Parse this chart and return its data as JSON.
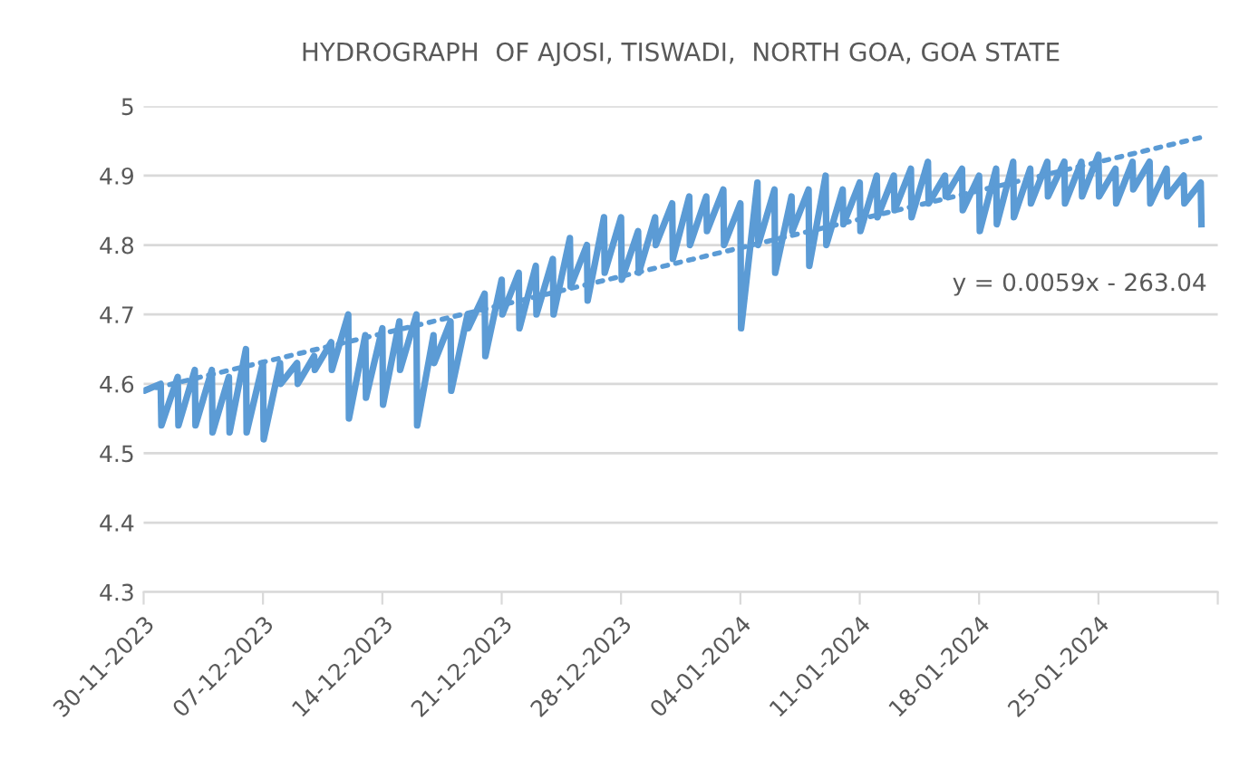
{
  "chart_data": {
    "type": "line",
    "title": "HYDROGRAPH  OF AJOSI, TISWADI,  NORTH GOA, GOA STATE",
    "xlim": [
      "2023-11-30",
      "2024-02-01"
    ],
    "xticks": [
      {
        "value": "2023-11-30",
        "label": "30-11-2023"
      },
      {
        "value": "2023-12-07",
        "label": "07-12-2023"
      },
      {
        "value": "2023-12-14",
        "label": "14-12-2023"
      },
      {
        "value": "2023-12-21",
        "label": "21-12-2023"
      },
      {
        "value": "2023-12-28",
        "label": "28-12-2023"
      },
      {
        "value": "2024-01-04",
        "label": "04-01-2024"
      },
      {
        "value": "2024-01-11",
        "label": "11-01-2024"
      },
      {
        "value": "2024-01-18",
        "label": "18-01-2024"
      },
      {
        "value": "2024-01-25",
        "label": "25-01-2024"
      },
      {
        "value": "2024-02-01",
        "label": null
      }
    ],
    "ylim": [
      4.3,
      5
    ],
    "yticks": [
      4.3,
      4.4,
      4.5,
      4.6,
      4.7,
      4.8,
      4.9,
      5
    ],
    "grid": "y",
    "legend": false,
    "annotations": [
      "y = 0.0059x - 263.04"
    ],
    "series": [
      {
        "color": "#5b9bd5",
        "line_style": "solid",
        "x": [
          "2023-11-30T00:00",
          "2023-11-30T01:00",
          "2023-12-01T00:00",
          "2023-12-01T01:00",
          "2023-12-02T00:00",
          "2023-12-02T01:00",
          "2023-12-03T00:00",
          "2023-12-03T01:00",
          "2023-12-04T00:00",
          "2023-12-04T01:00",
          "2023-12-05T00:00",
          "2023-12-05T01:00",
          "2023-12-06T00:00",
          "2023-12-06T01:00",
          "2023-12-07T00:00",
          "2023-12-07T01:00",
          "2023-12-08T00:00",
          "2023-12-08T01:00",
          "2023-12-09T00:00",
          "2023-12-09T01:00",
          "2023-12-10T00:00",
          "2023-12-10T01:00",
          "2023-12-11T00:00",
          "2023-12-11T01:00",
          "2023-12-12T00:00",
          "2023-12-12T01:00",
          "2023-12-13T00:00",
          "2023-12-13T01:00",
          "2023-12-14T00:00",
          "2023-12-14T01:00",
          "2023-12-15T00:00",
          "2023-12-15T01:00",
          "2023-12-16T00:00",
          "2023-12-16T01:00",
          "2023-12-17T00:00",
          "2023-12-17T01:00",
          "2023-12-18T00:00",
          "2023-12-18T01:00",
          "2023-12-19T00:00",
          "2023-12-19T01:00",
          "2023-12-20T00:00",
          "2023-12-20T01:00",
          "2023-12-21T00:00",
          "2023-12-21T01:00",
          "2023-12-22T00:00",
          "2023-12-22T01:00",
          "2023-12-23T00:00",
          "2023-12-23T01:00",
          "2023-12-24T00:00",
          "2023-12-24T01:00",
          "2023-12-25T00:00",
          "2023-12-25T01:00",
          "2023-12-26T00:00",
          "2023-12-26T01:00",
          "2023-12-27T00:00",
          "2023-12-27T01:00",
          "2023-12-28T00:00",
          "2023-12-28T01:00",
          "2023-12-29T00:00",
          "2023-12-29T01:00",
          "2023-12-30T00:00",
          "2023-12-30T01:00",
          "2023-12-31T00:00",
          "2023-12-31T01:00",
          "2024-01-01T00:00",
          "2024-01-01T01:00",
          "2024-01-02T00:00",
          "2024-01-02T01:00",
          "2024-01-03T00:00",
          "2024-01-03T01:00",
          "2024-01-04T00:00",
          "2024-01-04T01:00",
          "2024-01-05T00:00",
          "2024-01-05T01:00",
          "2024-01-06T00:00",
          "2024-01-06T01:00",
          "2024-01-07T00:00",
          "2024-01-07T01:00",
          "2024-01-08T00:00",
          "2024-01-08T01:00",
          "2024-01-09T00:00",
          "2024-01-09T01:00",
          "2024-01-10T00:00",
          "2024-01-10T01:00",
          "2024-01-11T00:00",
          "2024-01-11T01:00",
          "2024-01-12T00:00",
          "2024-01-12T01:00",
          "2024-01-13T00:00",
          "2024-01-13T01:00",
          "2024-01-14T00:00",
          "2024-01-14T01:00",
          "2024-01-15T00:00",
          "2024-01-15T01:00",
          "2024-01-16T00:00",
          "2024-01-16T01:00",
          "2024-01-17T00:00",
          "2024-01-17T01:00",
          "2024-01-18T00:00",
          "2024-01-18T01:00",
          "2024-01-19T00:00",
          "2024-01-19T01:00",
          "2024-01-20T00:00",
          "2024-01-20T01:00",
          "2024-01-21T00:00",
          "2024-01-21T01:00",
          "2024-01-22T00:00",
          "2024-01-22T01:00",
          "2024-01-23T00:00",
          "2024-01-23T01:00",
          "2024-01-24T00:00",
          "2024-01-24T01:00",
          "2024-01-25T00:00",
          "2024-01-25T01:00",
          "2024-01-26T00:00",
          "2024-01-26T01:00",
          "2024-01-27T00:00",
          "2024-01-27T01:00",
          "2024-01-28T00:00",
          "2024-01-28T01:00",
          "2024-01-29T00:00",
          "2024-01-29T01:00",
          "2024-01-30T00:00",
          "2024-01-30T01:00",
          "2024-01-31T00:00",
          "2024-01-31T01:00"
        ],
        "values": [
          4.59,
          4.59,
          4.6,
          4.54,
          4.61,
          4.54,
          4.62,
          4.54,
          4.62,
          4.53,
          4.61,
          4.53,
          4.65,
          4.53,
          4.63,
          4.52,
          4.63,
          4.6,
          4.63,
          4.6,
          4.64,
          4.62,
          4.66,
          4.62,
          4.7,
          4.55,
          4.67,
          4.58,
          4.68,
          4.57,
          4.69,
          4.62,
          4.7,
          4.54,
          4.67,
          4.63,
          4.69,
          4.59,
          4.7,
          4.68,
          4.73,
          4.64,
          4.75,
          4.7,
          4.76,
          4.68,
          4.77,
          4.7,
          4.78,
          4.7,
          4.81,
          4.74,
          4.8,
          4.72,
          4.84,
          4.76,
          4.84,
          4.75,
          4.82,
          4.76,
          4.84,
          4.8,
          4.86,
          4.78,
          4.87,
          4.8,
          4.87,
          4.82,
          4.88,
          4.8,
          4.86,
          4.68,
          4.89,
          4.8,
          4.88,
          4.76,
          4.87,
          4.82,
          4.88,
          4.77,
          4.9,
          4.8,
          4.88,
          4.83,
          4.89,
          4.82,
          4.9,
          4.84,
          4.9,
          4.85,
          4.91,
          4.84,
          4.92,
          4.86,
          4.9,
          4.87,
          4.91,
          4.85,
          4.9,
          4.82,
          4.91,
          4.83,
          4.92,
          4.84,
          4.91,
          4.86,
          4.92,
          4.87,
          4.92,
          4.86,
          4.92,
          4.87,
          4.93,
          4.87,
          4.91,
          4.86,
          4.92,
          4.88,
          4.92,
          4.86,
          4.91,
          4.87,
          4.9,
          4.86,
          4.89,
          4.83
        ]
      },
      {
        "color": "#5b9bd5",
        "line_style": "dotted",
        "x": [
          "2023-11-30",
          "2024-01-31"
        ],
        "values": [
          4.59,
          4.955
        ]
      }
    ]
  }
}
